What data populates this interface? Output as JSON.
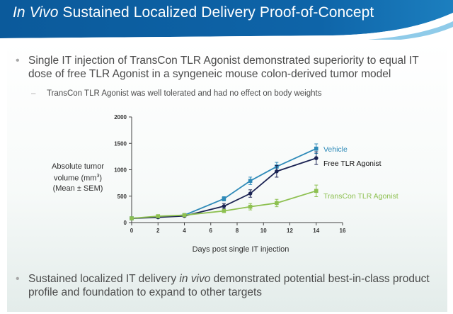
{
  "slide": {
    "title_italic": "In Vivo",
    "title_rest": " Sustained Localized Delivery Proof-of-Concept",
    "bullet1": "Single IT injection of TransCon TLR Agonist demonstrated superiority to equal IT dose of free TLR Agonist in a syngeneic mouse colon-derived tumor model",
    "sub_bullet": "TransCon TLR Agonist was well tolerated and had no effect on body weights",
    "bullet2_a": "Sustained localized IT delivery ",
    "bullet2_italic": "in vivo",
    "bullet2_b": " demonstrated potential best-in-class product profile and foundation to expand to other targets",
    "header_color": "#0a5a9c",
    "header_accent": "#7fc3e6"
  },
  "chart_data": {
    "type": "line",
    "xlabel": "Days post single IT injection",
    "ylabel_line1": "Absolute tumor",
    "ylabel_line2": "volume (mm",
    "ylabel_sup": "3",
    "ylabel_line2_end": ")",
    "ylabel_line3": "(Mean ± SEM)",
    "xlim": [
      0,
      16
    ],
    "ylim": [
      0,
      2000
    ],
    "x_ticks": [
      "0",
      "2",
      "4",
      "6",
      "8",
      "10",
      "12",
      "14",
      "16"
    ],
    "y_ticks": [
      "0",
      "500",
      "1000",
      "1500",
      "2000"
    ],
    "grid": false,
    "legend": "right, end of lines",
    "series": [
      {
        "name": "Vehicle",
        "color": "#2e8ab8",
        "x": [
          0,
          2,
          4,
          7,
          9,
          11,
          14
        ],
        "y": [
          80,
          110,
          140,
          450,
          790,
          1060,
          1400
        ],
        "err": [
          10,
          15,
          20,
          40,
          70,
          80,
          90
        ]
      },
      {
        "name": "Free TLR Agonist",
        "color": "#1b2353",
        "x": [
          0,
          2,
          4,
          7,
          9,
          11,
          14
        ],
        "y": [
          80,
          100,
          125,
          310,
          550,
          970,
          1220
        ],
        "err": [
          10,
          15,
          20,
          50,
          70,
          110,
          120
        ]
      },
      {
        "name": "TransCon TLR Agonist",
        "color": "#8dc050",
        "x": [
          0,
          2,
          4,
          7,
          9,
          11,
          14
        ],
        "y": [
          80,
          120,
          140,
          220,
          300,
          370,
          600
        ],
        "err": [
          10,
          15,
          20,
          30,
          60,
          70,
          110
        ]
      }
    ]
  }
}
